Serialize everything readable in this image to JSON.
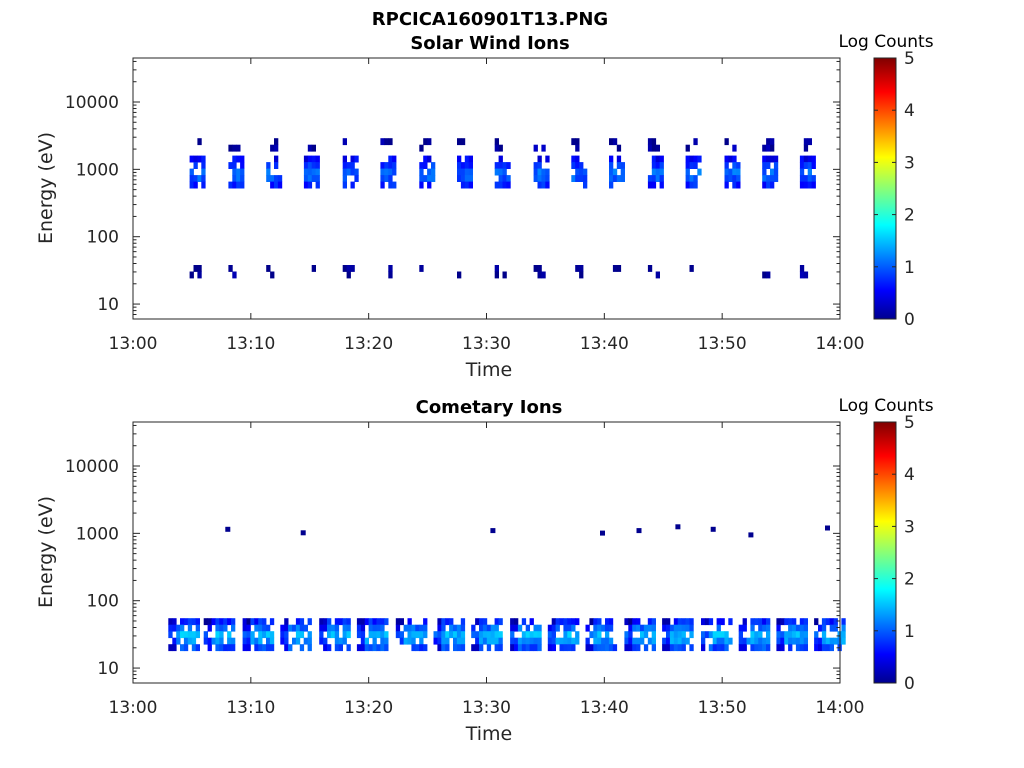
{
  "figure": {
    "title": "RPCICA160901T13.PNG"
  },
  "colorbar": {
    "label": "Log Counts",
    "ticks": [
      "0",
      "1",
      "2",
      "3",
      "4",
      "5"
    ],
    "range": [
      0,
      5
    ]
  },
  "chart_data": [
    {
      "type": "heatmap",
      "title": "Solar Wind Ions",
      "xlabel": "Time",
      "ylabel": "Energy (eV)",
      "x_ticks": [
        "13:00",
        "13:10",
        "13:20",
        "13:30",
        "13:40",
        "13:50",
        "14:00"
      ],
      "xlim_minutes": [
        0,
        60
      ],
      "y_scale": "log",
      "ylim": [
        6,
        45000
      ],
      "y_ticks": [
        10,
        100,
        1000,
        10000
      ],
      "y_tick_labels": [
        "10",
        "100",
        "1000",
        "10000"
      ],
      "colorbar_label": "Log Counts",
      "color_range": [
        0,
        5
      ],
      "cycle_start_minutes": [
        4.8,
        8.1,
        11.3,
        14.5,
        17.8,
        21.0,
        24.3,
        27.5,
        30.7,
        34.0,
        37.2,
        40.4,
        43.7,
        46.9,
        50.2,
        53.4,
        56.6
      ],
      "populations": [
        {
          "energy_center": 950,
          "energy_span": [
            560,
            1600
          ],
          "log_counts": 1.2
        },
        {
          "energy_center": 2400,
          "energy_span": [
            2100,
            2900
          ],
          "log_counts": 0.2
        },
        {
          "energy_center": 31,
          "energy_span": [
            26,
            38
          ],
          "log_counts": 0.1
        }
      ]
    },
    {
      "type": "heatmap",
      "title": "Cometary Ions",
      "xlabel": "Time",
      "ylabel": "Energy (eV)",
      "x_ticks": [
        "13:00",
        "13:10",
        "13:20",
        "13:30",
        "13:40",
        "13:50",
        "14:00"
      ],
      "xlim_minutes": [
        0,
        60
      ],
      "y_scale": "log",
      "ylim": [
        6,
        45000
      ],
      "y_ticks": [
        10,
        100,
        1000,
        10000
      ],
      "y_tick_labels": [
        "10",
        "100",
        "1000",
        "10000"
      ],
      "colorbar_label": "Log Counts",
      "color_range": [
        0,
        5
      ],
      "cycle_start_minutes": [
        3.0,
        6.0,
        9.3,
        12.5,
        15.8,
        19.0,
        22.3,
        25.5,
        28.7,
        32.0,
        35.2,
        38.4,
        41.7,
        44.9,
        48.2,
        51.4,
        54.6,
        57.8
      ],
      "populations": [
        {
          "energy_center": 33,
          "energy_span": [
            20,
            55
          ],
          "log_counts": 1.6
        }
      ],
      "sparse_points": [
        {
          "t": 8.0,
          "energy": 1150
        },
        {
          "t": 14.4,
          "energy": 1020
        },
        {
          "t": 30.5,
          "energy": 1100
        },
        {
          "t": 39.8,
          "energy": 1010
        },
        {
          "t": 42.9,
          "energy": 1100
        },
        {
          "t": 46.2,
          "energy": 1250
        },
        {
          "t": 49.2,
          "energy": 1150
        },
        {
          "t": 52.4,
          "energy": 950
        },
        {
          "t": 58.9,
          "energy": 1200
        }
      ]
    }
  ]
}
